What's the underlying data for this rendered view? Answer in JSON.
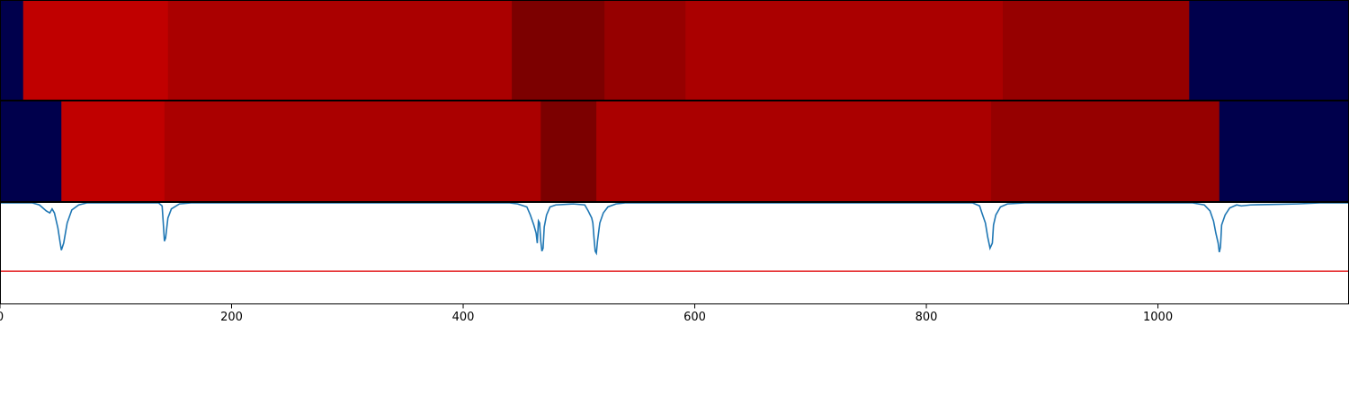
{
  "chart_data": {
    "type": "heatmap",
    "x_ticks": [
      0,
      200,
      400,
      600,
      800,
      1000
    ],
    "xlim": [
      0,
      1165
    ],
    "colors": {
      "background_segment": "#00004c",
      "signal_line": "#1f77b4",
      "threshold_line": "#e31a1c",
      "axis": "#000000"
    },
    "rows": [
      {
        "segments": [
          {
            "start": 0,
            "end": 20,
            "color": "#00004c"
          },
          {
            "start": 20,
            "end": 145,
            "color": "#c00000"
          },
          {
            "start": 145,
            "end": 442,
            "color": "#aa0000"
          },
          {
            "start": 442,
            "end": 522,
            "color": "#7c0000"
          },
          {
            "start": 522,
            "end": 592,
            "color": "#960000"
          },
          {
            "start": 592,
            "end": 866,
            "color": "#aa0000"
          },
          {
            "start": 866,
            "end": 1027,
            "color": "#960000"
          },
          {
            "start": 1027,
            "end": 1165,
            "color": "#00004c"
          }
        ]
      },
      {
        "segments": [
          {
            "start": 0,
            "end": 53,
            "color": "#00004c"
          },
          {
            "start": 53,
            "end": 142,
            "color": "#c00000"
          },
          {
            "start": 142,
            "end": 467,
            "color": "#aa0000"
          },
          {
            "start": 467,
            "end": 515,
            "color": "#7c0000"
          },
          {
            "start": 515,
            "end": 856,
            "color": "#aa0000"
          },
          {
            "start": 856,
            "end": 1053,
            "color": "#960000"
          },
          {
            "start": 1053,
            "end": 1165,
            "color": "#00004c"
          }
        ]
      }
    ],
    "signal": {
      "ylim": [
        0,
        1
      ],
      "threshold": 0.32,
      "points": [
        [
          0,
          1.0
        ],
        [
          28,
          1.0
        ],
        [
          34,
          0.98
        ],
        [
          40,
          0.92
        ],
        [
          43,
          0.9
        ],
        [
          45,
          0.94
        ],
        [
          47,
          0.9
        ],
        [
          50,
          0.75
        ],
        [
          52,
          0.6
        ],
        [
          53,
          0.53
        ],
        [
          55,
          0.6
        ],
        [
          58,
          0.8
        ],
        [
          62,
          0.93
        ],
        [
          68,
          0.98
        ],
        [
          75,
          1.0
        ],
        [
          137,
          1.0
        ],
        [
          140,
          0.97
        ],
        [
          141,
          0.8
        ],
        [
          142,
          0.62
        ],
        [
          143,
          0.65
        ],
        [
          145,
          0.85
        ],
        [
          148,
          0.94
        ],
        [
          155,
          0.99
        ],
        [
          165,
          1.0
        ],
        [
          440,
          1.0
        ],
        [
          447,
          0.99
        ],
        [
          455,
          0.96
        ],
        [
          458,
          0.88
        ],
        [
          461,
          0.78
        ],
        [
          463,
          0.7
        ],
        [
          464,
          0.6
        ],
        [
          465,
          0.82
        ],
        [
          466,
          0.8
        ],
        [
          467,
          0.62
        ],
        [
          468,
          0.52
        ],
        [
          469,
          0.55
        ],
        [
          470,
          0.76
        ],
        [
          472,
          0.88
        ],
        [
          475,
          0.96
        ],
        [
          480,
          0.98
        ],
        [
          495,
          0.99
        ],
        [
          505,
          0.98
        ],
        [
          508,
          0.92
        ],
        [
          511,
          0.85
        ],
        [
          512,
          0.8
        ],
        [
          513,
          0.65
        ],
        [
          514,
          0.52
        ],
        [
          515,
          0.5
        ],
        [
          516,
          0.62
        ],
        [
          518,
          0.8
        ],
        [
          521,
          0.9
        ],
        [
          525,
          0.96
        ],
        [
          532,
          0.99
        ],
        [
          540,
          1.0
        ],
        [
          840,
          1.0
        ],
        [
          846,
          0.97
        ],
        [
          848,
          0.9
        ],
        [
          851,
          0.8
        ],
        [
          853,
          0.66
        ],
        [
          855,
          0.55
        ],
        [
          857,
          0.6
        ],
        [
          858,
          0.78
        ],
        [
          860,
          0.88
        ],
        [
          864,
          0.96
        ],
        [
          870,
          0.99
        ],
        [
          885,
          1.0
        ],
        [
          1030,
          1.0
        ],
        [
          1040,
          0.98
        ],
        [
          1045,
          0.92
        ],
        [
          1048,
          0.82
        ],
        [
          1050,
          0.7
        ],
        [
          1052,
          0.6
        ],
        [
          1053,
          0.51
        ],
        [
          1054,
          0.56
        ],
        [
          1055,
          0.78
        ],
        [
          1058,
          0.88
        ],
        [
          1062,
          0.95
        ],
        [
          1068,
          0.98
        ],
        [
          1072,
          0.97
        ],
        [
          1080,
          0.98
        ],
        [
          1100,
          0.985
        ],
        [
          1120,
          0.99
        ],
        [
          1140,
          1.0
        ],
        [
          1165,
          1.0
        ]
      ]
    }
  }
}
